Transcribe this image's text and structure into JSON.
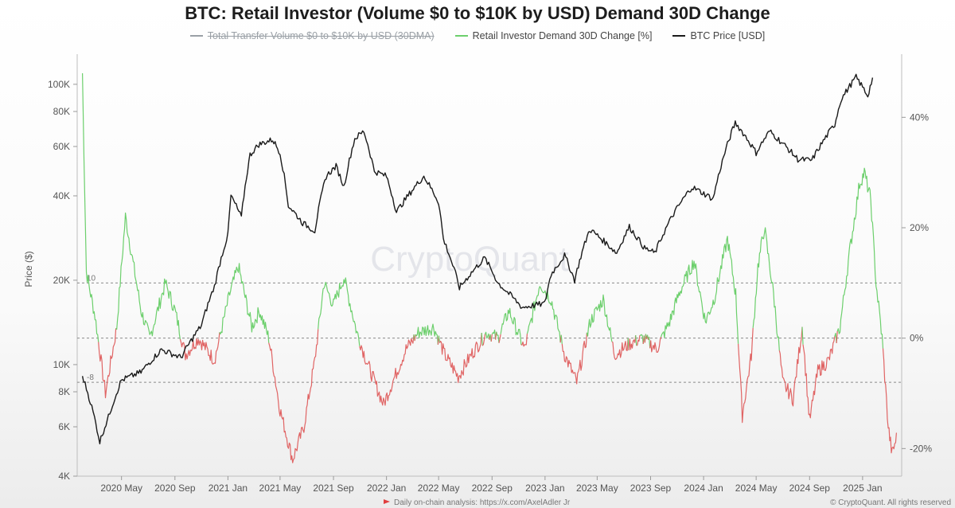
{
  "chart_data": {
    "type": "line",
    "title": "BTC: Retail Investor (Volume $0 to $10K by USD) Demand 30D Change",
    "legend": [
      {
        "name": "Total Transfer Volume $0 to $10K by USD (30DMA)",
        "color": "#9aa0a6",
        "hidden": true
      },
      {
        "name": "Retail Investor Demand 30D Change [%]",
        "color": "#6ccf6c",
        "hidden": false
      },
      {
        "name": "BTC Price [USD]",
        "color": "#1a1a1a",
        "hidden": false
      }
    ],
    "x_tick_labels": [
      "2020 May",
      "2020 Sep",
      "2021 Jan",
      "2021 May",
      "2021 Sep",
      "2022 Jan",
      "2022 May",
      "2022 Sep",
      "2023 Jan",
      "2023 May",
      "2023 Sep",
      "2024 Jan",
      "2024 May",
      "2024 Sep",
      "2025 Jan"
    ],
    "left_axis": {
      "label": "Price ($)",
      "scale": "log",
      "range": [
        4000,
        120000
      ],
      "tick_labels": [
        "100K",
        "80K",
        "60K",
        "40K",
        "20K",
        "10K",
        "8K",
        "6K",
        "4K"
      ],
      "tick_values": [
        100000,
        80000,
        60000,
        40000,
        20000,
        10000,
        8000,
        6000,
        4000
      ]
    },
    "right_axis": {
      "range": [
        -25,
        50
      ],
      "tick_labels": [
        "40%",
        "20%",
        "0%",
        "-20%"
      ],
      "tick_values": [
        40,
        20,
        0,
        -20
      ]
    },
    "reference_lines_pct": [
      10,
      0,
      -8
    ],
    "btc_price": {
      "name": "BTC Price [USD]",
      "points": [
        [
          "2020-02-01",
          9100
        ],
        [
          "2020-03-12",
          5300
        ],
        [
          "2020-04-01",
          6500
        ],
        [
          "2020-05-01",
          8800
        ],
        [
          "2020-06-15",
          9400
        ],
        [
          "2020-08-01",
          11300
        ],
        [
          "2020-09-15",
          10600
        ],
        [
          "2020-11-01",
          13800
        ],
        [
          "2020-12-01",
          19000
        ],
        [
          "2021-01-01",
          29000
        ],
        [
          "2021-01-08",
          40000
        ],
        [
          "2021-02-01",
          33500
        ],
        [
          "2021-02-21",
          56000
        ],
        [
          "2021-03-13",
          61000
        ],
        [
          "2021-04-14",
          63500
        ],
        [
          "2021-05-01",
          57000
        ],
        [
          "2021-05-20",
          37000
        ],
        [
          "2021-06-22",
          32000
        ],
        [
          "2021-07-20",
          30000
        ],
        [
          "2021-08-15",
          47000
        ],
        [
          "2021-09-07",
          51000
        ],
        [
          "2021-09-25",
          43000
        ],
        [
          "2021-10-20",
          64000
        ],
        [
          "2021-11-10",
          68000
        ],
        [
          "2021-12-04",
          49000
        ],
        [
          "2022-01-01",
          47000
        ],
        [
          "2022-01-24",
          35000
        ],
        [
          "2022-03-28",
          47000
        ],
        [
          "2022-05-01",
          38000
        ],
        [
          "2022-05-12",
          28000
        ],
        [
          "2022-06-18",
          18800
        ],
        [
          "2022-08-15",
          24000
        ],
        [
          "2022-09-15",
          19500
        ],
        [
          "2022-11-09",
          16000
        ],
        [
          "2022-12-31",
          16500
        ],
        [
          "2023-01-15",
          21000
        ],
        [
          "2023-02-15",
          24500
        ],
        [
          "2023-03-10",
          20000
        ],
        [
          "2023-04-14",
          30400
        ],
        [
          "2023-06-15",
          25000
        ],
        [
          "2023-07-14",
          31000
        ],
        [
          "2023-08-18",
          26000
        ],
        [
          "2023-09-11",
          25000
        ],
        [
          "2023-10-24",
          34500
        ],
        [
          "2023-12-05",
          43000
        ],
        [
          "2024-01-23",
          39000
        ],
        [
          "2024-03-14",
          73000
        ],
        [
          "2024-05-01",
          57000
        ],
        [
          "2024-06-01",
          68000
        ],
        [
          "2024-08-05",
          54000
        ],
        [
          "2024-09-06",
          53500
        ],
        [
          "2024-10-29",
          72000
        ],
        [
          "2024-11-12",
          88000
        ],
        [
          "2024-12-17",
          106000
        ],
        [
          "2025-01-13",
          91000
        ],
        [
          "2025-01-24",
          105000
        ]
      ]
    },
    "demand_30d_change_pct": {
      "name": "Retail Investor Demand 30D Change [%]",
      "positive_color": "#6ccf6c",
      "negative_color": "#e06464",
      "points": [
        [
          "2020-02-01",
          48
        ],
        [
          "2020-02-10",
          12
        ],
        [
          "2020-03-01",
          4
        ],
        [
          "2020-03-25",
          -10
        ],
        [
          "2020-04-20",
          2
        ],
        [
          "2020-05-10",
          22
        ],
        [
          "2020-06-15",
          5
        ],
        [
          "2020-07-05",
          0
        ],
        [
          "2020-08-10",
          10
        ],
        [
          "2020-09-01",
          5
        ],
        [
          "2020-09-25",
          -3
        ],
        [
          "2020-10-25",
          0
        ],
        [
          "2020-12-01",
          -4
        ],
        [
          "2021-01-05",
          8
        ],
        [
          "2021-01-25",
          13
        ],
        [
          "2021-02-25",
          2
        ],
        [
          "2021-03-15",
          5
        ],
        [
          "2021-04-05",
          0
        ],
        [
          "2021-05-01",
          -13
        ],
        [
          "2021-05-30",
          -22
        ],
        [
          "2021-06-25",
          -16
        ],
        [
          "2021-07-20",
          -4
        ],
        [
          "2021-08-10",
          10
        ],
        [
          "2021-09-01",
          6
        ],
        [
          "2021-09-25",
          11
        ],
        [
          "2021-10-25",
          1
        ],
        [
          "2021-11-20",
          -5
        ],
        [
          "2021-12-25",
          -12
        ],
        [
          "2022-01-20",
          -7
        ],
        [
          "2022-02-15",
          -2
        ],
        [
          "2022-03-15",
          1
        ],
        [
          "2022-04-20",
          2
        ],
        [
          "2022-05-15",
          -3
        ],
        [
          "2022-06-15",
          -7
        ],
        [
          "2022-07-15",
          -3
        ],
        [
          "2022-08-20",
          1
        ],
        [
          "2022-09-15",
          0
        ],
        [
          "2022-10-10",
          5
        ],
        [
          "2022-11-15",
          -2
        ],
        [
          "2022-12-20",
          10
        ],
        [
          "2023-01-15",
          7
        ],
        [
          "2023-02-15",
          -3
        ],
        [
          "2023-03-15",
          -8
        ],
        [
          "2023-04-15",
          3
        ],
        [
          "2023-05-15",
          7
        ],
        [
          "2023-06-10",
          -3
        ],
        [
          "2023-07-15",
          -1
        ],
        [
          "2023-08-15",
          0
        ],
        [
          "2023-09-15",
          -2
        ],
        [
          "2023-10-15",
          3
        ],
        [
          "2023-11-05",
          8
        ],
        [
          "2023-12-10",
          14
        ],
        [
          "2024-01-05",
          3
        ],
        [
          "2024-01-25",
          7
        ],
        [
          "2024-02-25",
          18
        ],
        [
          "2024-03-15",
          8
        ],
        [
          "2024-03-30",
          -14
        ],
        [
          "2024-04-20",
          -3
        ],
        [
          "2024-05-05",
          13
        ],
        [
          "2024-05-20",
          20
        ],
        [
          "2024-06-10",
          8
        ],
        [
          "2024-07-01",
          -8
        ],
        [
          "2024-07-25",
          -11
        ],
        [
          "2024-08-15",
          2
        ],
        [
          "2024-09-01",
          -15
        ],
        [
          "2024-09-20",
          -6
        ],
        [
          "2024-10-15",
          -4
        ],
        [
          "2024-11-10",
          2
        ],
        [
          "2024-12-01",
          15
        ],
        [
          "2024-12-25",
          28
        ],
        [
          "2025-01-05",
          30
        ],
        [
          "2025-01-20",
          25
        ],
        [
          "2025-02-01",
          10
        ],
        [
          "2025-02-15",
          0
        ],
        [
          "2025-03-01",
          -16
        ],
        [
          "2025-03-10",
          -21
        ],
        [
          "2025-03-20",
          -18
        ]
      ]
    },
    "reference_tag_labels": [
      "10",
      "-8"
    ],
    "watermark": "CryptoQuant",
    "footer_left": "Daily on-chain analysis: https://x.com/AxelAdler Jr",
    "footer_right": "© CryptoQuant. All rights reserved"
  }
}
